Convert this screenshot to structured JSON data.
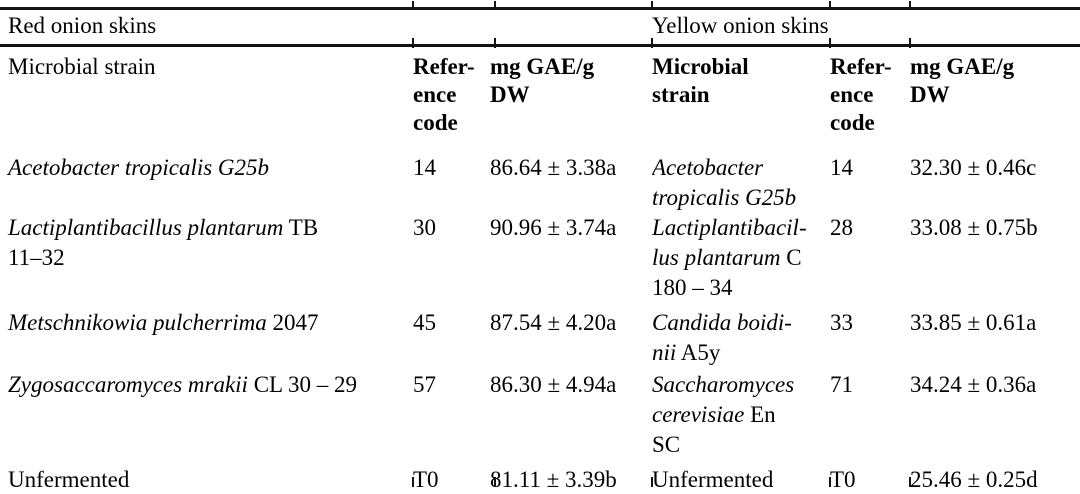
{
  "table": {
    "group_headers": [
      "Red onion skins",
      "Yellow onion skins"
    ],
    "columns": [
      {
        "label": "Microbial strain"
      },
      {
        "label": "Refer-\nence\ncode"
      },
      {
        "label": "mg GAE/g\nDW"
      },
      {
        "label": "Microbial\nstrain"
      },
      {
        "label": "Refer-\nence\ncode"
      },
      {
        "label": "mg GAE/g\nDW"
      }
    ],
    "rows": [
      {
        "red": {
          "strain": [
            {
              "text": "Acetobacter tropicalis G25b",
              "italic": true
            }
          ],
          "code": "14",
          "value": "86.64 ± 3.38a"
        },
        "yellow": {
          "strain": [
            {
              "text": "Acetobacter\ntropicalis G25b",
              "italic": true
            }
          ],
          "code": "14",
          "value": "32.30 ± 0.46c"
        }
      },
      {
        "red": {
          "strain": [
            {
              "text": "Lactiplantibacillus plantarum",
              "italic": true
            },
            {
              "text": " TB\n11–32",
              "italic": false
            }
          ],
          "code": "30",
          "value": "90.96 ± 3.74a"
        },
        "yellow": {
          "strain": [
            {
              "text": "Lactiplantibacil-\nlus plantarum",
              "italic": true
            },
            {
              "text": " C\n180 – 34",
              "italic": false
            }
          ],
          "code": "28",
          "value": "33.08 ± 0.75b"
        }
      },
      {
        "red": {
          "strain": [
            {
              "text": "Metschnikowia pulcherrima",
              "italic": true
            },
            {
              "text": " 2047",
              "italic": false
            }
          ],
          "code": "45",
          "value": "87.54 ± 4.20a"
        },
        "yellow": {
          "strain": [
            {
              "text": "Candida boidi-\nnii",
              "italic": true
            },
            {
              "text": " A5y",
              "italic": false
            }
          ],
          "code": "33",
          "value": "33.85 ± 0.61a"
        }
      },
      {
        "red": {
          "strain": [
            {
              "text": "Zygosaccaromyces mrakii",
              "italic": true
            },
            {
              "text": " CL 30 – 29",
              "italic": false
            }
          ],
          "code": "57",
          "value": "86.30 ± 4.94a"
        },
        "yellow": {
          "strain": [
            {
              "text": "Saccharomyces\ncerevisiae",
              "italic": true
            },
            {
              "text": " En\nSC",
              "italic": false
            }
          ],
          "code": "71",
          "value": "34.24 ± 0.36a"
        }
      },
      {
        "red": {
          "strain": [
            {
              "text": "Unfermented",
              "italic": false
            }
          ],
          "code": "T0",
          "value": "81.11 ± 3.39b"
        },
        "yellow": {
          "strain": [
            {
              "text": "Unfermented",
              "italic": false
            }
          ],
          "code": "T0",
          "value": "25.46 ± 0.25d"
        }
      }
    ]
  }
}
